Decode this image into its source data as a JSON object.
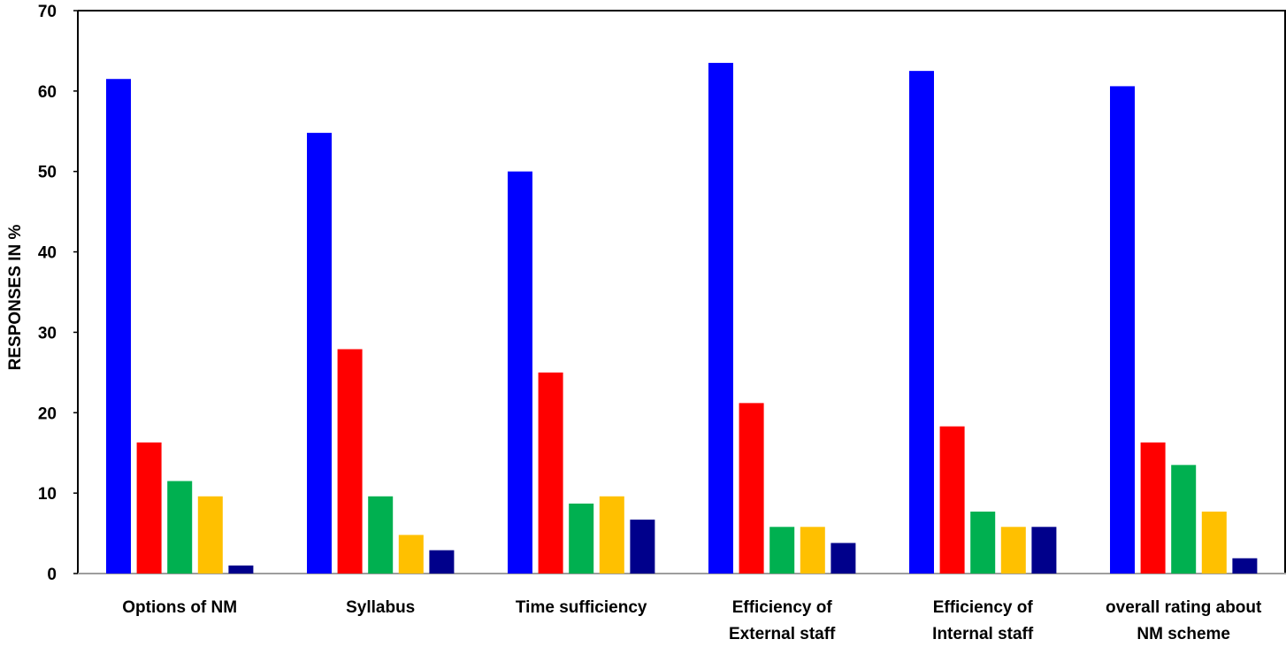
{
  "chart_data": {
    "type": "bar",
    "title": "",
    "xlabel": "",
    "ylabel": "RESPONSES IN %",
    "ylim": [
      0,
      70
    ],
    "yticks": [
      0,
      10,
      20,
      30,
      40,
      50,
      60,
      70
    ],
    "grid": false,
    "legend": "none",
    "categories": [
      [
        "Options of NM"
      ],
      [
        "Syllabus"
      ],
      [
        "Time sufficiency"
      ],
      [
        "Efficiency of",
        "External staff"
      ],
      [
        "Efficiency of",
        "Internal staff"
      ],
      [
        "overall rating about",
        "NM scheme"
      ]
    ],
    "series": [
      {
        "color": "#0000FF",
        "values": [
          61.5,
          54.8,
          50.0,
          63.5,
          62.5,
          60.6
        ]
      },
      {
        "color": "#FF0000",
        "values": [
          16.3,
          27.9,
          25.0,
          21.2,
          18.3,
          16.3
        ]
      },
      {
        "color": "#00B050",
        "values": [
          11.5,
          9.6,
          8.7,
          5.8,
          7.7,
          13.5
        ]
      },
      {
        "color": "#FFC000",
        "values": [
          9.6,
          4.8,
          9.6,
          5.8,
          5.8,
          7.7
        ]
      },
      {
        "color": "#00008B",
        "values": [
          1.0,
          2.9,
          6.7,
          3.8,
          5.8,
          1.9
        ]
      }
    ]
  }
}
